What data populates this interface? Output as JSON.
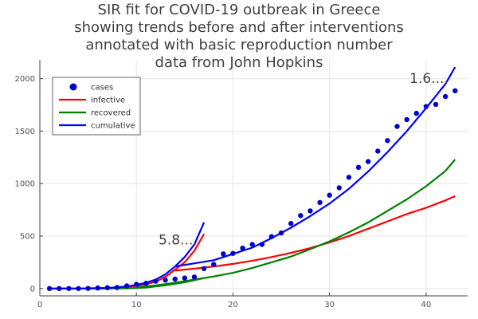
{
  "chart_data": {
    "type": "line",
    "title_lines": [
      "SIR fit for COVID-19 outbreak in Greece",
      "showing trends before and after interventions",
      "annotated with basic reproduction number",
      "data from John Hopkins"
    ],
    "xlabel": "",
    "ylabel": "",
    "xlim": [
      0,
      44.3
    ],
    "ylim": [
      -70,
      2180
    ],
    "xticks": [
      0,
      10,
      20,
      30,
      40
    ],
    "yticks": [
      0,
      500,
      1000,
      1500,
      2000
    ],
    "grid": true,
    "legend_position": "top-left",
    "annotations": [
      {
        "text": "5.8....",
        "x": 14.3,
        "y": 420
      },
      {
        "text": "1.6....",
        "x": 40.3,
        "y": 1960
      }
    ],
    "series": [
      {
        "name": "cases",
        "kind": "scatter",
        "color": "#0000cc",
        "points": [
          [
            1,
            0
          ],
          [
            2,
            0
          ],
          [
            3,
            0
          ],
          [
            4,
            0
          ],
          [
            5,
            1
          ],
          [
            6,
            5
          ],
          [
            7,
            8
          ],
          [
            8,
            10
          ],
          [
            9,
            25
          ],
          [
            10,
            40
          ],
          [
            11,
            50
          ],
          [
            12,
            70
          ],
          [
            13,
            80
          ],
          [
            14,
            90
          ],
          [
            15,
            100
          ],
          [
            16,
            110
          ],
          [
            17,
            190
          ],
          [
            18,
            230
          ],
          [
            19,
            330
          ],
          [
            20,
            335
          ],
          [
            21,
            385
          ],
          [
            22,
            420
          ],
          [
            23,
            420
          ],
          [
            24,
            495
          ],
          [
            25,
            530
          ],
          [
            26,
            620
          ],
          [
            27,
            695
          ],
          [
            28,
            740
          ],
          [
            29,
            820
          ],
          [
            30,
            890
          ],
          [
            31,
            960
          ],
          [
            32,
            1060
          ],
          [
            33,
            1155
          ],
          [
            34,
            1210
          ],
          [
            35,
            1310
          ],
          [
            36,
            1410
          ],
          [
            37,
            1545
          ],
          [
            38,
            1610
          ],
          [
            39,
            1670
          ],
          [
            40,
            1735
          ],
          [
            41,
            1755
          ],
          [
            42,
            1830
          ],
          [
            43,
            1885
          ]
        ]
      },
      {
        "name": "infective",
        "kind": "line",
        "color": "#ff0000",
        "segments": [
          [
            [
              1,
              0
            ],
            [
              4,
              0
            ],
            [
              7,
              3
            ],
            [
              9,
              15
            ],
            [
              10,
              25
            ],
            [
              11,
              40
            ],
            [
              12,
              65
            ],
            [
              13,
              110
            ],
            [
              14,
              180
            ],
            [
              15,
              250
            ],
            [
              16,
              360
            ],
            [
              17,
              520
            ]
          ],
          [
            [
              14,
              170
            ],
            [
              16,
              190
            ],
            [
              18,
              210
            ],
            [
              20,
              235
            ],
            [
              22,
              265
            ],
            [
              24,
              300
            ],
            [
              26,
              340
            ],
            [
              28,
              385
            ],
            [
              30,
              440
            ],
            [
              32,
              500
            ],
            [
              34,
              570
            ],
            [
              36,
              640
            ],
            [
              38,
              710
            ],
            [
              40,
              770
            ],
            [
              42,
              840
            ],
            [
              43,
              880
            ]
          ]
        ]
      },
      {
        "name": "recovered",
        "kind": "line",
        "color": "#008000",
        "segments": [
          [
            [
              1,
              0
            ],
            [
              4,
              0
            ],
            [
              7,
              0
            ],
            [
              9,
              2
            ],
            [
              10,
              5
            ],
            [
              11,
              10
            ],
            [
              12,
              20
            ],
            [
              13,
              30
            ],
            [
              14,
              45
            ],
            [
              15,
              60
            ],
            [
              16,
              80
            ],
            [
              17,
              100
            ]
          ],
          [
            [
              10,
              10
            ],
            [
              12,
              30
            ],
            [
              14,
              55
            ],
            [
              16,
              85
            ],
            [
              18,
              115
            ],
            [
              20,
              150
            ],
            [
              22,
              195
            ],
            [
              24,
              250
            ],
            [
              26,
              305
            ],
            [
              28,
              375
            ],
            [
              30,
              450
            ],
            [
              32,
              535
            ],
            [
              34,
              630
            ],
            [
              36,
              740
            ],
            [
              38,
              850
            ],
            [
              40,
              975
            ],
            [
              42,
              1120
            ],
            [
              43,
              1230
            ]
          ]
        ]
      },
      {
        "name": "cumulative",
        "kind": "line",
        "color": "#0000ff",
        "segments": [
          [
            [
              1,
              0
            ],
            [
              4,
              0
            ],
            [
              7,
              5
            ],
            [
              9,
              20
            ],
            [
              10,
              35
            ],
            [
              11,
              55
            ],
            [
              12,
              85
            ],
            [
              13,
              135
            ],
            [
              14,
              210
            ],
            [
              15,
              300
            ],
            [
              16,
              420
            ],
            [
              17,
              630
            ]
          ],
          [
            [
              14,
              210
            ],
            [
              16,
              240
            ],
            [
              18,
              270
            ],
            [
              20,
              330
            ],
            [
              22,
              390
            ],
            [
              24,
              480
            ],
            [
              26,
              580
            ],
            [
              28,
              690
            ],
            [
              30,
              810
            ],
            [
              32,
              950
            ],
            [
              34,
              1115
            ],
            [
              36,
              1300
            ],
            [
              38,
              1500
            ],
            [
              40,
              1720
            ],
            [
              42,
              1950
            ],
            [
              43,
              2110
            ]
          ]
        ]
      }
    ]
  }
}
